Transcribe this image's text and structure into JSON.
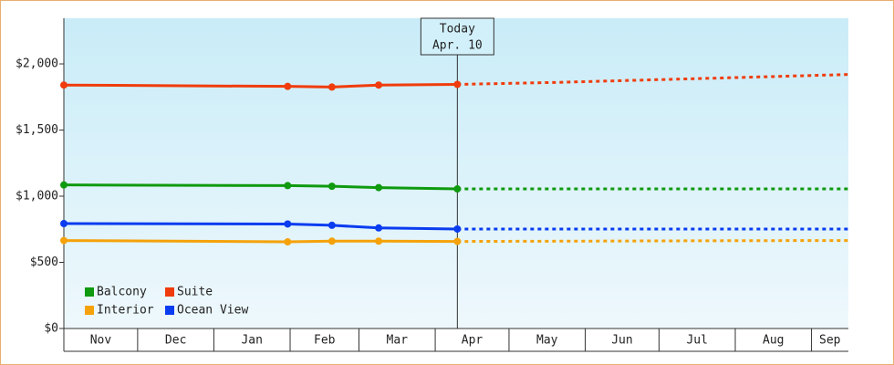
{
  "chart_data": {
    "type": "line",
    "x": [
      0,
      91,
      109,
      128,
      160,
      200,
      240,
      280,
      319
    ],
    "xlim": [
      0,
      319
    ],
    "xticks": [
      {
        "value": 0,
        "label": "Nov"
      },
      {
        "value": 30,
        "label": "Dec"
      },
      {
        "value": 61,
        "label": "Jan"
      },
      {
        "value": 92,
        "label": "Feb"
      },
      {
        "value": 120,
        "label": "Mar"
      },
      {
        "value": 151,
        "label": "Apr"
      },
      {
        "value": 181,
        "label": "May"
      },
      {
        "value": 212,
        "label": "Jun"
      },
      {
        "value": 242,
        "label": "Jul"
      },
      {
        "value": 273,
        "label": "Aug"
      },
      {
        "value": 304,
        "label": "Sep"
      }
    ],
    "ylim": [
      0,
      2345
    ],
    "yticks": [
      {
        "value": 0,
        "label": "$0"
      },
      {
        "value": 500,
        "label": "$500"
      },
      {
        "value": 1000,
        "label": "$1,000"
      },
      {
        "value": 1500,
        "label": "$1,500"
      },
      {
        "value": 2000,
        "label": "$2,000"
      }
    ],
    "annotation": {
      "x": 160,
      "lines": [
        "Today",
        "Apr. 10"
      ]
    },
    "series": [
      {
        "name": "Balcony",
        "color": "#0f9a0f",
        "values": [
          1085,
          1080,
          1075,
          1065,
          1055,
          null,
          null,
          null,
          null
        ],
        "forecast": [
          null,
          null,
          null,
          null,
          1055,
          1055,
          1055,
          1055,
          1055
        ]
      },
      {
        "name": "Suite",
        "color": "#f03c0c",
        "values": [
          1840,
          1830,
          1825,
          1840,
          1845,
          null,
          null,
          null,
          null
        ],
        "forecast": [
          null,
          null,
          null,
          null,
          1845,
          1860,
          1880,
          1900,
          1920
        ]
      },
      {
        "name": "Interior",
        "color": "#f5a20a",
        "values": [
          665,
          655,
          660,
          660,
          658,
          null,
          null,
          null,
          null
        ],
        "forecast": [
          null,
          null,
          null,
          null,
          658,
          660,
          662,
          664,
          665
        ]
      },
      {
        "name": "Ocean View",
        "color": "#0a3cf0",
        "values": [
          793,
          790,
          780,
          760,
          752,
          null,
          null,
          null,
          null
        ],
        "forecast": [
          null,
          null,
          null,
          null,
          752,
          752,
          752,
          752,
          752
        ]
      }
    ],
    "legend": "lower-left"
  }
}
